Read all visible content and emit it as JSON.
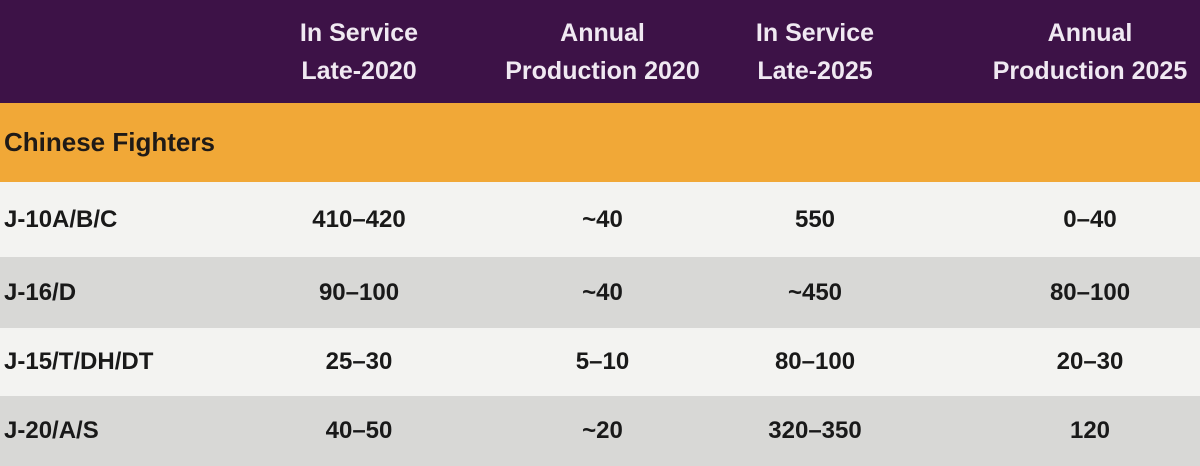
{
  "colors": {
    "header_bg": "#3d1247",
    "header_text": "#f0e9f2",
    "section_bg": "#f1a837",
    "section_text": "#1f1a17",
    "row_light_bg": "#f3f3f1",
    "row_dark_bg": "#d8d8d6",
    "data_text": "#191919"
  },
  "table": {
    "header": {
      "columns": [
        "In Service\nLate-2020",
        "Annual\nProduction 2020",
        "In Service\nLate-2025",
        "Annual\nProduction 2025"
      ]
    },
    "section": {
      "title": "Chinese Fighters"
    },
    "rows": [
      {
        "label": "J-10A/B/C",
        "values": [
          "410–420",
          "~40",
          "550",
          "0–40"
        ]
      },
      {
        "label": "J-16/D",
        "values": [
          "90–100",
          "~40",
          "~450",
          "80–100"
        ]
      },
      {
        "label": "J-15/T/DH/DT",
        "values": [
          "25–30",
          "5–10",
          "80–100",
          "20–30"
        ]
      },
      {
        "label": "J-20/A/S",
        "values": [
          "40–50",
          "~20",
          "320–350",
          "120"
        ]
      }
    ]
  },
  "chart_data": {
    "type": "table",
    "section": "Chinese Fighters",
    "columns": [
      "",
      "In Service Late-2020",
      "Annual Production 2020",
      "In Service Late-2025",
      "Annual Production 2025"
    ],
    "rows": [
      [
        "J-10A/B/C",
        "410–420",
        "~40",
        "550",
        "0–40"
      ],
      [
        "J-16/D",
        "90–100",
        "~40",
        "~450",
        "80–100"
      ],
      [
        "J-15/T/DH/DT",
        "25–30",
        "5–10",
        "80–100",
        "20–30"
      ],
      [
        "J-20/A/S",
        "40–50",
        "~20",
        "320–350",
        "120"
      ]
    ]
  }
}
